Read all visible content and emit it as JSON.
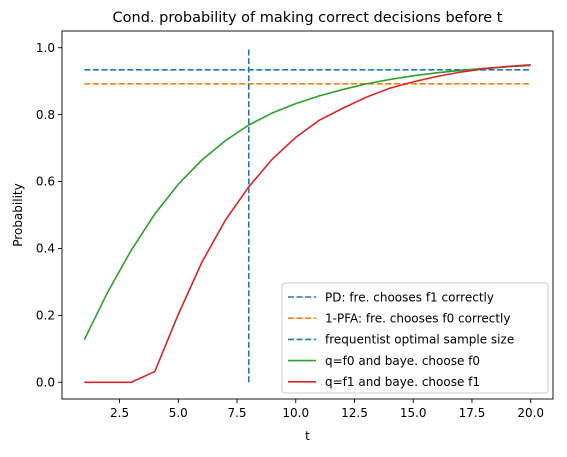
{
  "chart_data": {
    "type": "line",
    "title": "Cond. probability of making correct decisions before t",
    "xlabel": "t",
    "ylabel": "Probability",
    "xlim": [
      0.05,
      20.95
    ],
    "ylim": [
      -0.05,
      1.05
    ],
    "xticks": [
      2.5,
      5.0,
      7.5,
      10.0,
      12.5,
      15.0,
      17.5,
      20.0
    ],
    "xtick_labels": [
      "2.5",
      "5.0",
      "7.5",
      "10.0",
      "12.5",
      "15.0",
      "17.5",
      "20.0"
    ],
    "yticks": [
      0.0,
      0.2,
      0.4,
      0.6,
      0.8,
      1.0
    ],
    "ytick_labels": [
      "0.0",
      "0.2",
      "0.4",
      "0.6",
      "0.8",
      "1.0"
    ],
    "grid": false,
    "legend_position": "lower-right",
    "x": [
      1,
      2,
      3,
      4,
      5,
      6,
      7,
      8,
      9,
      10,
      11,
      12,
      13,
      14,
      15,
      16,
      17,
      18,
      19,
      20
    ],
    "series": [
      {
        "name": "PD: fre. chooses f1 correctly",
        "kind": "hline",
        "y": 0.934,
        "x_range": [
          1,
          20
        ],
        "color": "#1f77b4",
        "dashed": true
      },
      {
        "name": "1-PFA: fre. chooses f0 correctly",
        "kind": "hline",
        "y": 0.892,
        "x_range": [
          1,
          20
        ],
        "color": "#ff7f0e",
        "dashed": true
      },
      {
        "name": "frequentist optimal sample size",
        "kind": "vline",
        "x": 8,
        "y_range": [
          0.0,
          1.0
        ],
        "color": "#1f77b4",
        "dashed": true
      },
      {
        "name": "q=f0 and baye. choose f0",
        "kind": "line",
        "color": "#2ca02c",
        "values": [
          0.127,
          0.27,
          0.395,
          0.503,
          0.592,
          0.664,
          0.722,
          0.769,
          0.805,
          0.833,
          0.856,
          0.875,
          0.892,
          0.905,
          0.916,
          0.925,
          0.932,
          0.938,
          0.943,
          0.947
        ]
      },
      {
        "name": "q=f1 and baye. choose f1",
        "kind": "line",
        "color": "#d62728",
        "values": [
          0.0,
          0.0,
          0.0,
          0.032,
          0.203,
          0.358,
          0.484,
          0.584,
          0.667,
          0.732,
          0.783,
          0.819,
          0.852,
          0.879,
          0.898,
          0.914,
          0.927,
          0.937,
          0.944,
          0.949
        ]
      }
    ]
  }
}
